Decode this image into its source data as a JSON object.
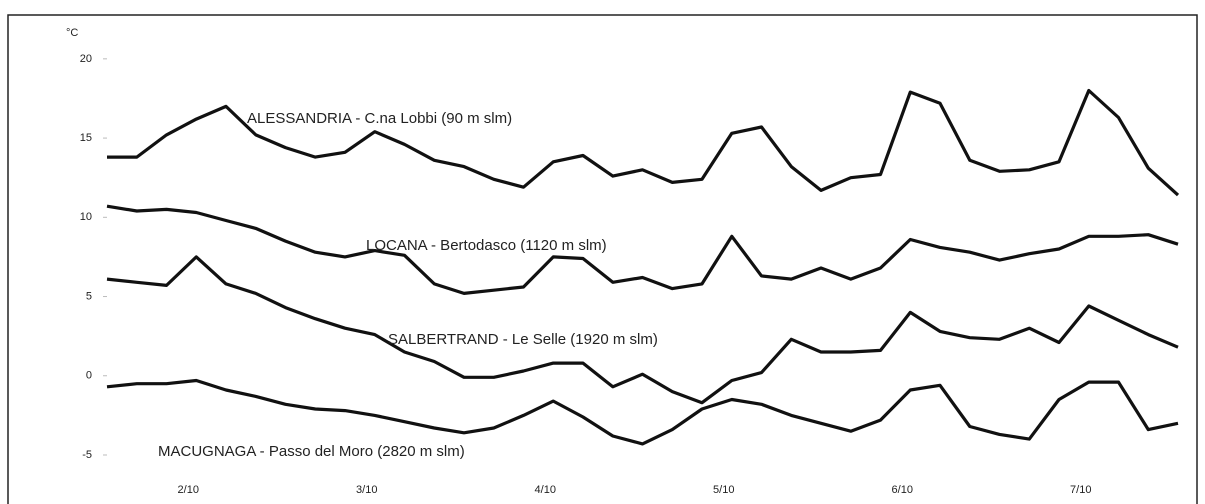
{
  "chart_data": {
    "type": "line",
    "y_label": "°C",
    "categories": [
      null,
      null,
      null,
      "2/10",
      null,
      null,
      null,
      null,
      null,
      "3/10",
      null,
      null,
      null,
      null,
      null,
      "4/10",
      null,
      null,
      null,
      null,
      null,
      "5/10",
      null,
      null,
      null,
      null,
      null,
      "6/10",
      null,
      null,
      null,
      null,
      null,
      "7/10",
      null,
      null,
      null
    ],
    "series": [
      {
        "name": "ALESSANDRIA - C.na Lobbi (90 m slm)",
        "color": "#111111",
        "values": [
          13.8,
          13.8,
          15.2,
          16.2,
          17.0,
          15.2,
          14.4,
          13.8,
          14.1,
          15.4,
          14.6,
          13.6,
          13.2,
          12.4,
          11.9,
          13.5,
          13.9,
          12.6,
          13.0,
          12.2,
          12.4,
          15.3,
          15.7,
          13.2,
          11.7,
          12.5,
          12.7,
          17.9,
          17.2,
          13.6,
          12.9,
          13.0,
          13.5,
          18.0,
          16.3,
          13.1,
          11.4
        ]
      },
      {
        "name": "LOCANA - Bertodasco (1120 m slm)",
        "color": "#111111",
        "values": [
          10.7,
          10.4,
          10.5,
          10.3,
          9.8,
          9.3,
          8.5,
          7.8,
          7.5,
          7.9,
          7.6,
          5.8,
          5.2,
          5.4,
          5.6,
          7.5,
          7.4,
          5.9,
          6.2,
          5.5,
          5.8,
          8.8,
          6.3,
          6.1,
          6.8,
          6.1,
          6.8,
          8.6,
          8.1,
          7.8,
          7.3,
          7.7,
          8.0,
          8.8,
          8.8,
          8.9,
          8.3
        ]
      },
      {
        "name": "SALBERTRAND - Le Selle (1920 m slm)",
        "color": "#111111",
        "values": [
          6.1,
          5.9,
          5.7,
          7.5,
          5.8,
          5.2,
          4.3,
          3.6,
          3.0,
          2.6,
          1.5,
          0.9,
          -0.1,
          -0.1,
          0.3,
          0.8,
          0.8,
          -0.7,
          0.1,
          -1.0,
          -1.7,
          -0.3,
          0.2,
          2.3,
          1.5,
          1.5,
          1.6,
          4.0,
          2.8,
          2.4,
          2.3,
          3.0,
          2.1,
          4.4,
          3.5,
          2.6,
          1.8
        ]
      },
      {
        "name": "MACUGNAGA - Passo del Moro (2820 m slm)",
        "color": "#111111",
        "values": [
          -0.7,
          -0.5,
          -0.5,
          -0.3,
          -0.9,
          -1.3,
          -1.8,
          -2.1,
          -2.2,
          -2.5,
          -2.9,
          -3.3,
          -3.6,
          -3.3,
          -2.5,
          -1.6,
          -2.6,
          -3.8,
          -4.3,
          -3.4,
          -2.1,
          -1.5,
          -1.8,
          -2.5,
          -3.0,
          -3.5,
          -2.8,
          -0.9,
          -0.6,
          -3.2,
          -3.7,
          -4.0,
          -1.5,
          -0.4,
          -0.4,
          -3.4,
          -3.0
        ]
      }
    ],
    "ylim": [
      -6.2,
      21
    ],
    "yticks": [
      20,
      15,
      10,
      5,
      0,
      -5
    ]
  }
}
